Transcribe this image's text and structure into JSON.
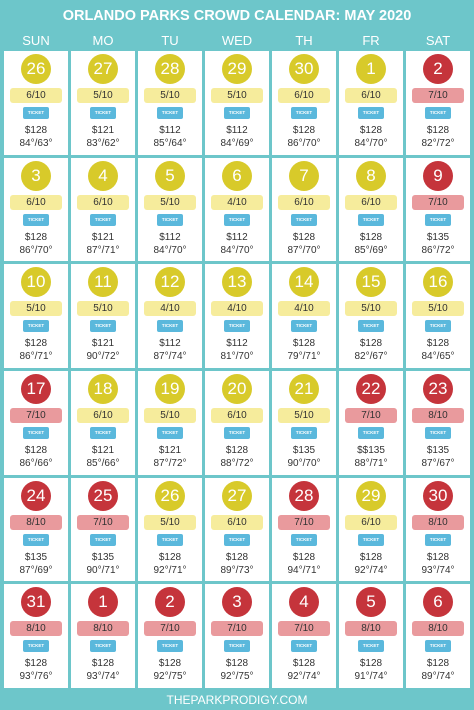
{
  "header": {
    "title": "ORLANDO PARKS CROWD CALENDAR: MAY 2020",
    "days": [
      "SUN",
      "MO",
      "TU",
      "WED",
      "TH",
      "FR",
      "SAT"
    ]
  },
  "ticket_label": "TICKET",
  "colors": {
    "low": {
      "circle": "#d8ca2a",
      "pill": "#f6ec9c"
    },
    "high": {
      "circle": "#c5343b",
      "pill": "#e99a9d"
    }
  },
  "weeks": [
    [
      {
        "day": "26",
        "crowd": "6/10",
        "price": "$128",
        "temps": "84°/63°",
        "level": "low"
      },
      {
        "day": "27",
        "crowd": "5/10",
        "price": "$121",
        "temps": "83°/62°",
        "level": "low"
      },
      {
        "day": "28",
        "crowd": "5/10",
        "price": "$112",
        "temps": "85°/64°",
        "level": "low"
      },
      {
        "day": "29",
        "crowd": "5/10",
        "price": "$112",
        "temps": "84°/69°",
        "level": "low"
      },
      {
        "day": "30",
        "crowd": "6/10",
        "price": "$128",
        "temps": "86°/70°",
        "level": "low"
      },
      {
        "day": "1",
        "crowd": "6/10",
        "price": "$128",
        "temps": "84°/70°",
        "level": "low"
      },
      {
        "day": "2",
        "crowd": "7/10",
        "price": "$128",
        "temps": "82°/72°",
        "level": "high"
      }
    ],
    [
      {
        "day": "3",
        "crowd": "6/10",
        "price": "$128",
        "temps": "86°/70°",
        "level": "low"
      },
      {
        "day": "4",
        "crowd": "6/10",
        "price": "$121",
        "temps": "87°/71°",
        "level": "low"
      },
      {
        "day": "5",
        "crowd": "5/10",
        "price": "$112",
        "temps": "84°/70°",
        "level": "low"
      },
      {
        "day": "6",
        "crowd": "4/10",
        "price": "$112",
        "temps": "84°/70°",
        "level": "low"
      },
      {
        "day": "7",
        "crowd": "6/10",
        "price": "$128",
        "temps": "87°/70°",
        "level": "low"
      },
      {
        "day": "8",
        "crowd": "6/10",
        "price": "$128",
        "temps": "85°/69°",
        "level": "low"
      },
      {
        "day": "9",
        "crowd": "7/10",
        "price": "$135",
        "temps": "86°/72°",
        "level": "high"
      }
    ],
    [
      {
        "day": "10",
        "crowd": "5/10",
        "price": "$128",
        "temps": "86°/71°",
        "level": "low"
      },
      {
        "day": "11",
        "crowd": "5/10",
        "price": "$121",
        "temps": "90°/72°",
        "level": "low"
      },
      {
        "day": "12",
        "crowd": "4/10",
        "price": "$112",
        "temps": "87°/74°",
        "level": "low"
      },
      {
        "day": "13",
        "crowd": "4/10",
        "price": "$112",
        "temps": "81°/70°",
        "level": "low"
      },
      {
        "day": "14",
        "crowd": "4/10",
        "price": "$128",
        "temps": "79°/71°",
        "level": "low"
      },
      {
        "day": "15",
        "crowd": "5/10",
        "price": "$128",
        "temps": "82°/67°",
        "level": "low"
      },
      {
        "day": "16",
        "crowd": "5/10",
        "price": "$128",
        "temps": "84°/65°",
        "level": "low"
      }
    ],
    [
      {
        "day": "17",
        "crowd": "7/10",
        "price": "$128",
        "temps": "86°/66°",
        "level": "high"
      },
      {
        "day": "18",
        "crowd": "6/10",
        "price": "$121",
        "temps": "85°/66°",
        "level": "low"
      },
      {
        "day": "19",
        "crowd": "5/10",
        "price": "$121",
        "temps": "87°/72°",
        "level": "low"
      },
      {
        "day": "20",
        "crowd": "6/10",
        "price": "$128",
        "temps": "88°/72°",
        "level": "low"
      },
      {
        "day": "21",
        "crowd": "5/10",
        "price": "$135",
        "temps": "90°/70°",
        "level": "low"
      },
      {
        "day": "22",
        "crowd": "7/10",
        "price": "$$135",
        "temps": "88°/71°",
        "level": "high"
      },
      {
        "day": "23",
        "crowd": "8/10",
        "price": "$135",
        "temps": "87°/67°",
        "level": "high"
      }
    ],
    [
      {
        "day": "24",
        "crowd": "8/10",
        "price": "$135",
        "temps": "87°/69°",
        "level": "high"
      },
      {
        "day": "25",
        "crowd": "7/10",
        "price": "$135",
        "temps": "90°/71°",
        "level": "high"
      },
      {
        "day": "26",
        "crowd": "5/10",
        "price": "$128",
        "temps": "92°/71°",
        "level": "low"
      },
      {
        "day": "27",
        "crowd": "6/10",
        "price": "$128",
        "temps": "89°/73°",
        "level": "low"
      },
      {
        "day": "28",
        "crowd": "7/10",
        "price": "$128",
        "temps": "94°/71°",
        "level": "high"
      },
      {
        "day": "29",
        "crowd": "6/10",
        "price": "$128",
        "temps": "92°/74°",
        "level": "low"
      },
      {
        "day": "30",
        "crowd": "8/10",
        "price": "$128",
        "temps": "93°/74°",
        "level": "high"
      }
    ],
    [
      {
        "day": "31",
        "crowd": "8/10",
        "price": "$128",
        "temps": "93°/76°",
        "level": "high"
      },
      {
        "day": "1",
        "crowd": "8/10",
        "price": "$128",
        "temps": "93°/74°",
        "level": "high"
      },
      {
        "day": "2",
        "crowd": "7/10",
        "price": "$128",
        "temps": "92°/75°",
        "level": "high"
      },
      {
        "day": "3",
        "crowd": "7/10",
        "price": "$128",
        "temps": "92°/75°",
        "level": "high"
      },
      {
        "day": "4",
        "crowd": "7/10",
        "price": "$128",
        "temps": "92°/74°",
        "level": "high"
      },
      {
        "day": "5",
        "crowd": "8/10",
        "price": "$128",
        "temps": "91°/74°",
        "level": "high"
      },
      {
        "day": "6",
        "crowd": "8/10",
        "price": "$128",
        "temps": "89°/74°",
        "level": "high"
      }
    ]
  ],
  "footer": "THEPARKPRODIGY.COM"
}
